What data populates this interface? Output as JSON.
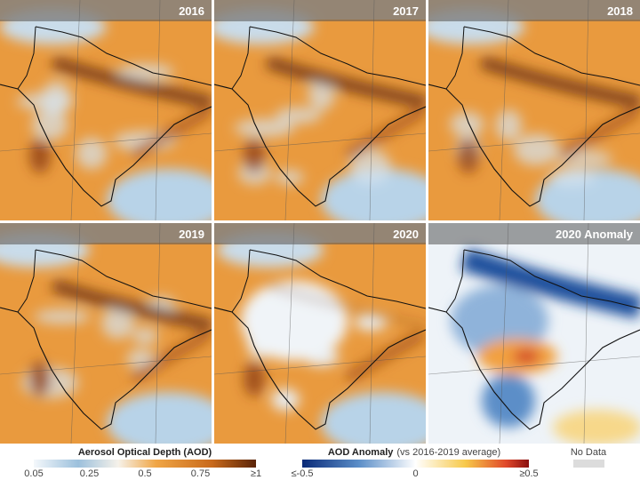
{
  "panels": [
    {
      "label": "2016",
      "kind": "aod"
    },
    {
      "label": "2017",
      "kind": "aod"
    },
    {
      "label": "2018",
      "kind": "aod"
    },
    {
      "label": "2019",
      "kind": "aod"
    },
    {
      "label": "2020",
      "kind": "aod"
    },
    {
      "label": "2020 Anomaly",
      "kind": "anomaly"
    }
  ],
  "legend_aod": {
    "title": "Aerosol Optical Depth (AOD)",
    "ticks": [
      "0.05",
      "0.25",
      "0.5",
      "0.75",
      "≥1"
    ]
  },
  "legend_anomaly": {
    "title": "AOD Anomaly",
    "subtitle": "(vs 2016-2019 average)",
    "ticks": [
      "≤-0.5",
      "0",
      "≥0.5"
    ]
  },
  "no_data": {
    "label": "No Data"
  }
}
